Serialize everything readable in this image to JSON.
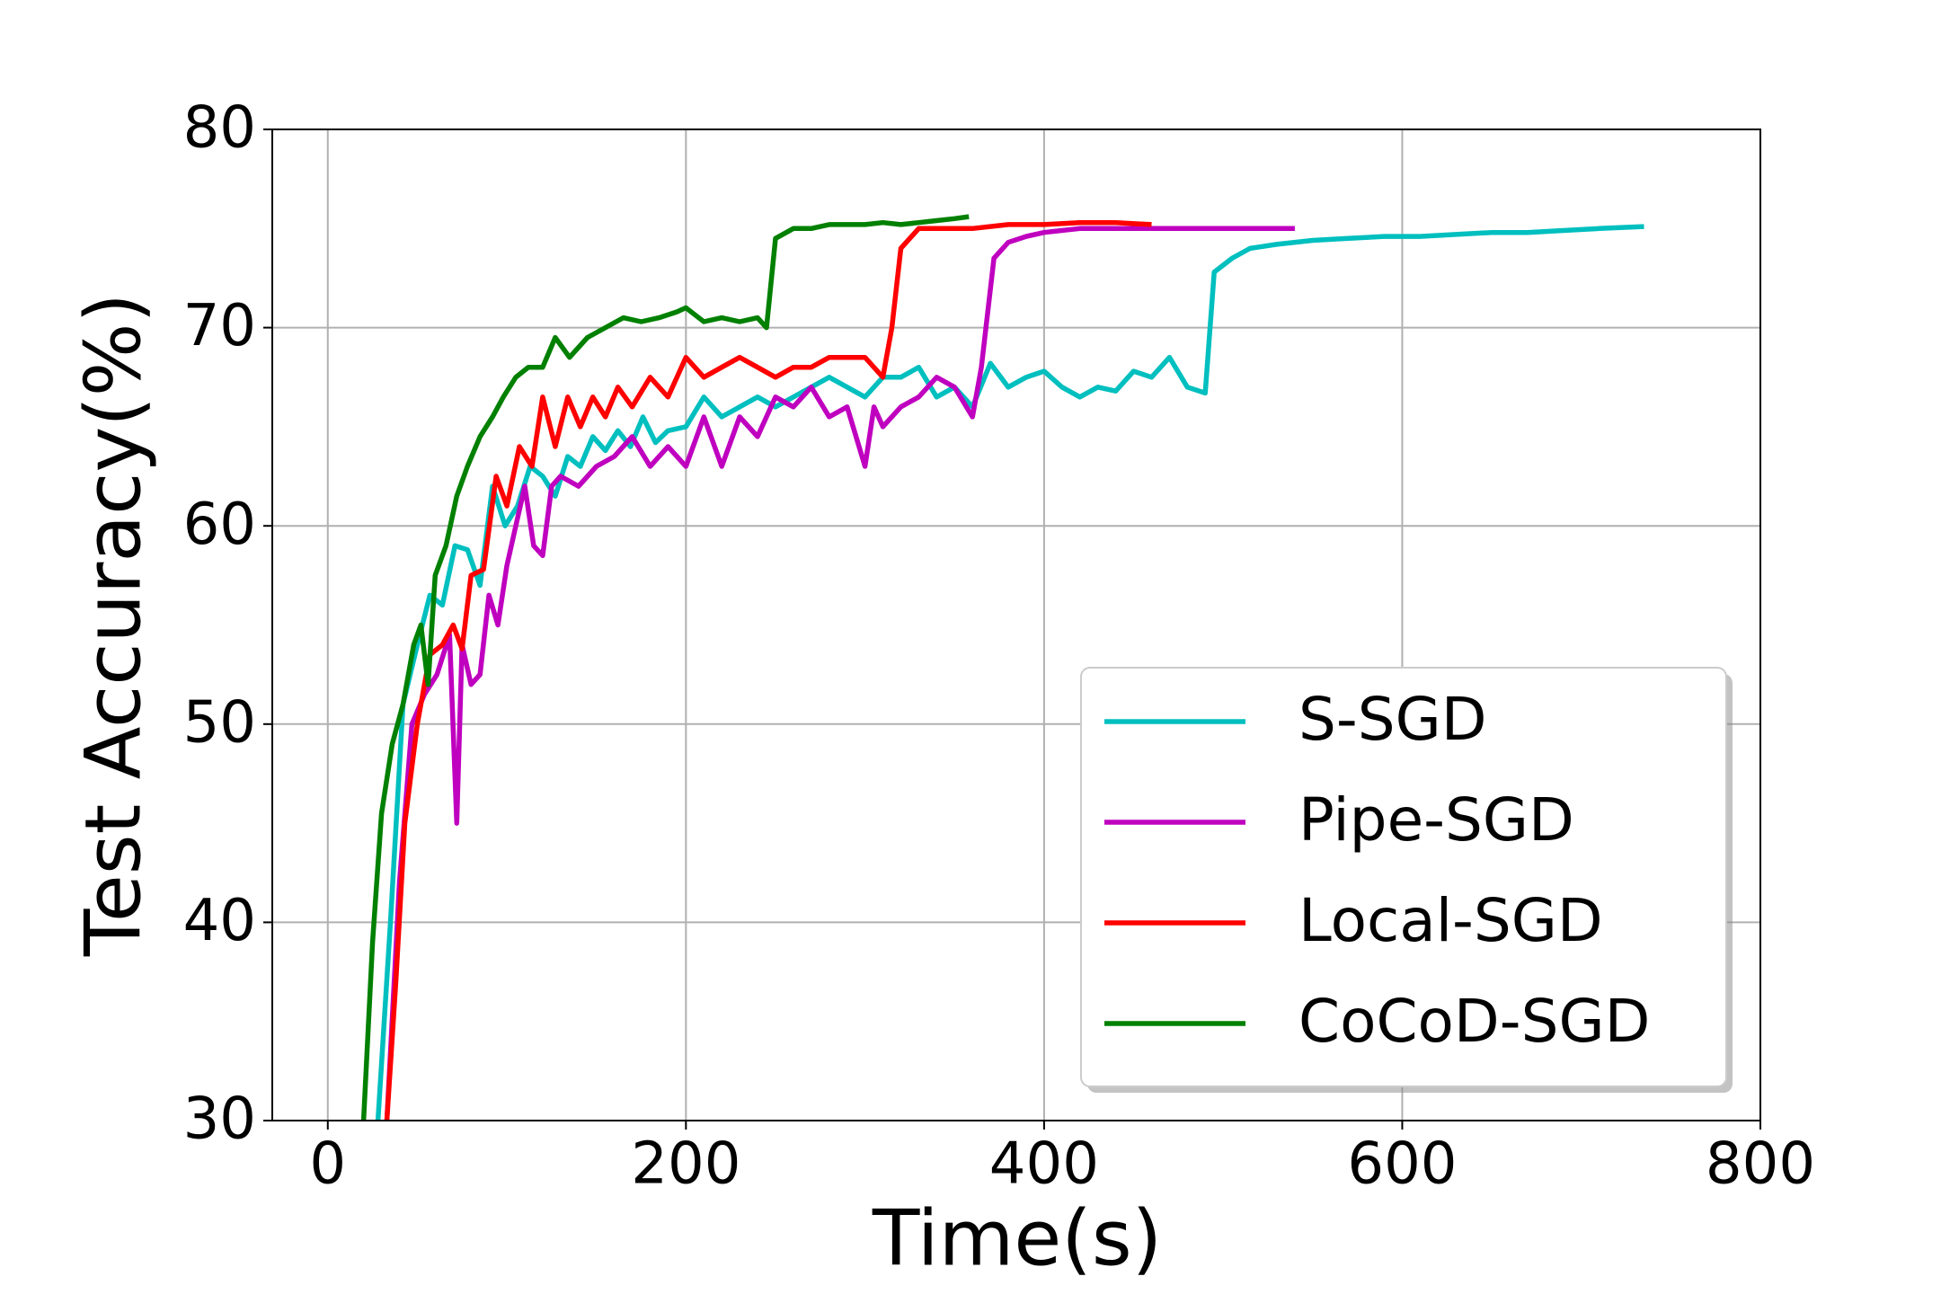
{
  "chart_data": {
    "type": "line",
    "xlabel": "Time(s)",
    "ylabel": "Test Accuracy(%)",
    "xlim": [
      -31,
      800
    ],
    "xticks": [
      0,
      200,
      400,
      600,
      800
    ],
    "ylim": [
      30,
      80
    ],
    "yticks": [
      30,
      40,
      50,
      60,
      70,
      80
    ],
    "grid": true,
    "legend": "lower right",
    "series": [
      {
        "name": "S-SGD",
        "color": "#00bfbf",
        "x": [
          28,
          35,
          42,
          50,
          57,
          64,
          71,
          78,
          85,
          92,
          99,
          106,
          113,
          120,
          127,
          134,
          141,
          148,
          155,
          162,
          169,
          176,
          183,
          190,
          200,
          210,
          220,
          230,
          240,
          250,
          260,
          270,
          280,
          290,
          300,
          310,
          320,
          330,
          340,
          350,
          360,
          370,
          380,
          390,
          400,
          410,
          420,
          430,
          440,
          450,
          460,
          470,
          480,
          490,
          495,
          505,
          515,
          530,
          550,
          570,
          590,
          610,
          630,
          650,
          670,
          690,
          710,
          735
        ],
        "values": [
          30,
          40,
          51,
          54,
          56.5,
          56,
          59,
          58.8,
          57,
          62,
          60,
          61,
          63,
          62.5,
          61.5,
          63.5,
          63,
          64.5,
          63.8,
          64.8,
          64,
          65.5,
          64.2,
          64.8,
          65,
          66.5,
          65.5,
          66,
          66.5,
          66,
          66.5,
          67,
          67.5,
          67,
          66.5,
          67.5,
          67.5,
          68,
          66.5,
          67,
          66,
          68.2,
          67,
          67.5,
          67.8,
          67,
          66.5,
          67,
          66.8,
          67.8,
          67.5,
          68.5,
          67,
          66.7,
          72.8,
          73.5,
          74,
          74.2,
          74.4,
          74.5,
          74.6,
          74.6,
          74.7,
          74.8,
          74.8,
          74.9,
          75,
          75.1
        ]
      },
      {
        "name": "Pipe-SGD",
        "color": "#bf00bf",
        "x": [
          33,
          40,
          47,
          54,
          61,
          68,
          72,
          75,
          80,
          85,
          90,
          95,
          100,
          105,
          110,
          115,
          120,
          125,
          130,
          140,
          150,
          160,
          170,
          180,
          190,
          200,
          210,
          220,
          230,
          240,
          250,
          260,
          270,
          280,
          290,
          300,
          305,
          310,
          320,
          330,
          340,
          350,
          360,
          365,
          372,
          380,
          390,
          400,
          420,
          440,
          460,
          480,
          500,
          520,
          540
        ],
        "values": [
          30,
          42,
          50,
          51.5,
          52.5,
          54.5,
          45,
          54,
          52,
          52.5,
          56.5,
          55,
          58,
          60,
          62,
          59,
          58.5,
          62,
          62.5,
          62,
          63,
          63.5,
          64.5,
          63,
          64,
          63,
          65.5,
          63,
          65.5,
          64.5,
          66.5,
          66,
          67,
          65.5,
          66,
          63,
          66,
          65,
          66,
          66.5,
          67.5,
          67,
          65.5,
          68,
          73.5,
          74.3,
          74.6,
          74.8,
          75,
          75,
          75,
          75,
          75,
          75,
          75
        ]
      },
      {
        "name": "Local-SGD",
        "color": "#ff0000",
        "x": [
          33,
          38,
          43,
          50,
          57,
          64,
          70,
          75,
          80,
          87,
          94,
          100,
          107,
          114,
          120,
          127,
          134,
          141,
          148,
          155,
          162,
          170,
          180,
          190,
          200,
          210,
          220,
          230,
          240,
          250,
          260,
          270,
          280,
          290,
          300,
          310,
          315,
          320,
          330,
          340,
          360,
          380,
          400,
          420,
          440,
          460
        ],
        "values": [
          30,
          37,
          45,
          50,
          53.5,
          54,
          55,
          53.8,
          57.5,
          57.8,
          62.5,
          61,
          64,
          63,
          66.5,
          64,
          66.5,
          65,
          66.5,
          65.5,
          67,
          66,
          67.5,
          66.5,
          68.5,
          67.5,
          68,
          68.5,
          68,
          67.5,
          68,
          68,
          68.5,
          68.5,
          68.5,
          67.5,
          70,
          74,
          75,
          75,
          75,
          75.2,
          75.2,
          75.3,
          75.3,
          75.2
        ]
      },
      {
        "name": "CoCoD-SGD",
        "color": "#008000",
        "x": [
          20,
          25,
          30,
          36,
          42,
          48,
          52,
          56,
          60,
          66,
          72,
          78,
          85,
          92,
          98,
          105,
          112,
          120,
          127,
          135,
          145,
          155,
          165,
          175,
          185,
          195,
          200,
          210,
          220,
          230,
          240,
          245,
          250,
          260,
          270,
          280,
          290,
          300,
          310,
          320,
          330,
          340,
          350,
          358
        ],
        "values": [
          30,
          39,
          45.5,
          49,
          51,
          54,
          55,
          52,
          57.5,
          59,
          61.5,
          63,
          64.5,
          65.5,
          66.5,
          67.5,
          68,
          68,
          69.5,
          68.5,
          69.5,
          70,
          70.5,
          70.3,
          70.5,
          70.8,
          71,
          70.3,
          70.5,
          70.3,
          70.5,
          70,
          74.5,
          75,
          75,
          75.2,
          75.2,
          75.2,
          75.3,
          75.2,
          75.3,
          75.4,
          75.5,
          75.6
        ]
      }
    ]
  }
}
